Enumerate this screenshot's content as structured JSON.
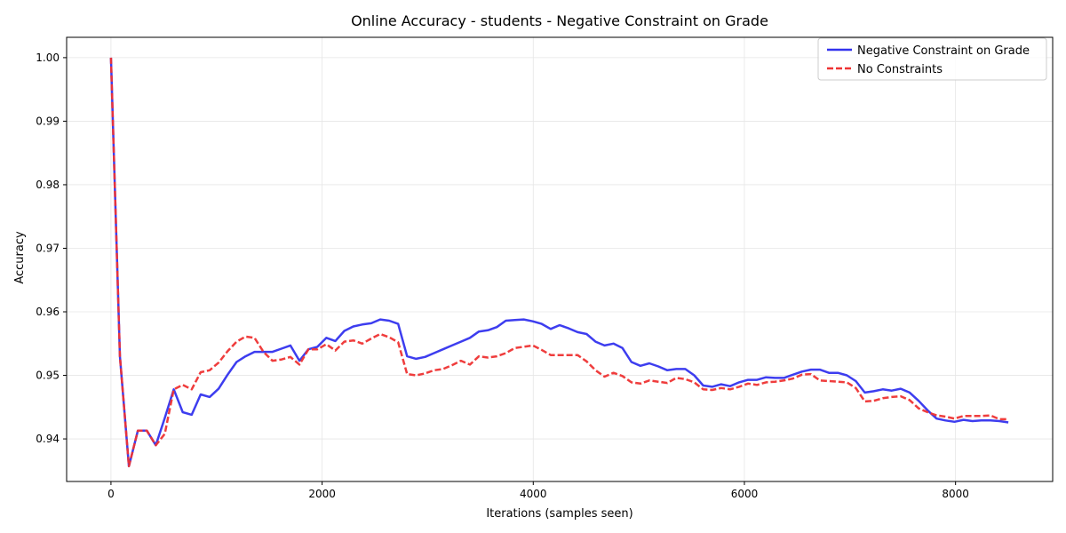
{
  "chart_data": {
    "type": "line",
    "title": "Online Accuracy - students - Negative Constraint on Grade",
    "xlabel": "Iterations (samples seen)",
    "ylabel": "Accuracy",
    "xlim": [
      -420,
      8920
    ],
    "ylim": [
      0.9333,
      1.0032
    ],
    "xticks": [
      0,
      2000,
      4000,
      6000,
      8000
    ],
    "xtick_labels": [
      "0",
      "2000",
      "4000",
      "6000",
      "8000"
    ],
    "yticks": [
      0.94,
      0.95,
      0.96,
      0.97,
      0.98,
      0.99,
      1.0
    ],
    "ytick_labels": [
      "0.94",
      "0.95",
      "0.96",
      "0.97",
      "0.98",
      "0.99",
      "1.00"
    ],
    "grid": true,
    "legend_position": "top-right",
    "series": [
      {
        "name": "Negative Constraint on Grade",
        "color": "#3333ee",
        "style": "solid",
        "x": [
          0,
          85,
          170,
          255,
          340,
          425,
          510,
          595,
          680,
          765,
          850,
          935,
          1020,
          1105,
          1190,
          1275,
          1360,
          1445,
          1530,
          1615,
          1700,
          1785,
          1870,
          1955,
          2040,
          2125,
          2210,
          2295,
          2380,
          2465,
          2550,
          2635,
          2720,
          2805,
          2890,
          2975,
          3060,
          3145,
          3230,
          3315,
          3400,
          3485,
          3570,
          3655,
          3740,
          3825,
          3910,
          3995,
          4080,
          4165,
          4250,
          4335,
          4420,
          4505,
          4590,
          4675,
          4760,
          4845,
          4930,
          5015,
          5100,
          5185,
          5270,
          5355,
          5440,
          5525,
          5610,
          5695,
          5780,
          5865,
          5950,
          6035,
          6120,
          6205,
          6290,
          6375,
          6460,
          6545,
          6630,
          6715,
          6800,
          6885,
          6970,
          7055,
          7140,
          7225,
          7310,
          7395,
          7480,
          7565,
          7650,
          7735,
          7820,
          7905,
          7990,
          8075,
          8160,
          8245,
          8330,
          8415,
          8500
        ],
        "y": [
          1.0,
          0.953,
          0.9357,
          0.9413,
          0.9413,
          0.939,
          0.9433,
          0.9478,
          0.9442,
          0.9438,
          0.947,
          0.9466,
          0.9479,
          0.9501,
          0.9521,
          0.953,
          0.9537,
          0.9537,
          0.9537,
          0.9542,
          0.9547,
          0.9523,
          0.9541,
          0.9545,
          0.9559,
          0.9554,
          0.957,
          0.9577,
          0.958,
          0.9582,
          0.9588,
          0.9586,
          0.9581,
          0.953,
          0.9526,
          0.9529,
          0.9535,
          0.9541,
          0.9547,
          0.9553,
          0.9559,
          0.9569,
          0.9571,
          0.9576,
          0.9586,
          0.9587,
          0.9588,
          0.9585,
          0.9581,
          0.9573,
          0.9579,
          0.9574,
          0.9568,
          0.9565,
          0.9553,
          0.9547,
          0.955,
          0.9543,
          0.9521,
          0.9515,
          0.9519,
          0.9514,
          0.9508,
          0.951,
          0.951,
          0.95,
          0.9484,
          0.9482,
          0.9486,
          0.9483,
          0.9489,
          0.9493,
          0.9493,
          0.9497,
          0.9496,
          0.9496,
          0.9501,
          0.9506,
          0.9509,
          0.9509,
          0.9504,
          0.9504,
          0.95,
          0.9491,
          0.9473,
          0.9475,
          0.9478,
          0.9476,
          0.9479,
          0.9473,
          0.946,
          0.9445,
          0.9432,
          0.9429,
          0.9427,
          0.943,
          0.9428,
          0.9429,
          0.9429,
          0.9428,
          0.9426
        ]
      },
      {
        "name": "No Constraints",
        "color": "#ee3333",
        "style": "dashed",
        "x": [
          0,
          85,
          170,
          255,
          340,
          425,
          510,
          595,
          680,
          765,
          850,
          935,
          1020,
          1105,
          1190,
          1275,
          1360,
          1445,
          1530,
          1615,
          1700,
          1785,
          1870,
          1955,
          2040,
          2125,
          2210,
          2295,
          2380,
          2465,
          2550,
          2635,
          2720,
          2805,
          2890,
          2975,
          3060,
          3145,
          3230,
          3315,
          3400,
          3485,
          3570,
          3655,
          3740,
          3825,
          3910,
          3995,
          4080,
          4165,
          4250,
          4335,
          4420,
          4505,
          4590,
          4675,
          4760,
          4845,
          4930,
          5015,
          5100,
          5185,
          5270,
          5355,
          5440,
          5525,
          5610,
          5695,
          5780,
          5865,
          5950,
          6035,
          6120,
          6205,
          6290,
          6375,
          6460,
          6545,
          6630,
          6715,
          6800,
          6885,
          6970,
          7055,
          7140,
          7225,
          7310,
          7395,
          7480,
          7565,
          7650,
          7735,
          7820,
          7905,
          7990,
          8075,
          8160,
          8245,
          8330,
          8415,
          8500
        ],
        "y": [
          1.0,
          0.953,
          0.9357,
          0.9413,
          0.9413,
          0.939,
          0.9408,
          0.9478,
          0.9485,
          0.9478,
          0.9505,
          0.9508,
          0.952,
          0.9538,
          0.9553,
          0.9561,
          0.9559,
          0.9537,
          0.9523,
          0.9525,
          0.9529,
          0.9517,
          0.9541,
          0.9541,
          0.9549,
          0.9539,
          0.9553,
          0.9555,
          0.955,
          0.9558,
          0.9565,
          0.956,
          0.9552,
          0.9502,
          0.95,
          0.9503,
          0.9508,
          0.951,
          0.9516,
          0.9523,
          0.9517,
          0.953,
          0.9528,
          0.953,
          0.9535,
          0.9543,
          0.9545,
          0.9547,
          0.954,
          0.9532,
          0.9532,
          0.9532,
          0.9532,
          0.9522,
          0.9508,
          0.9498,
          0.9504,
          0.9499,
          0.9489,
          0.9487,
          0.9492,
          0.949,
          0.9488,
          0.9496,
          0.9494,
          0.9489,
          0.9478,
          0.9477,
          0.948,
          0.9478,
          0.9482,
          0.9487,
          0.9485,
          0.9489,
          0.949,
          0.9492,
          0.9495,
          0.9501,
          0.9502,
          0.9492,
          0.9491,
          0.949,
          0.9489,
          0.948,
          0.9459,
          0.946,
          0.9464,
          0.9466,
          0.9467,
          0.9461,
          0.9448,
          0.9442,
          0.9437,
          0.9435,
          0.9432,
          0.9436,
          0.9436,
          0.9436,
          0.9437,
          0.9431,
          0.9431
        ]
      }
    ]
  }
}
